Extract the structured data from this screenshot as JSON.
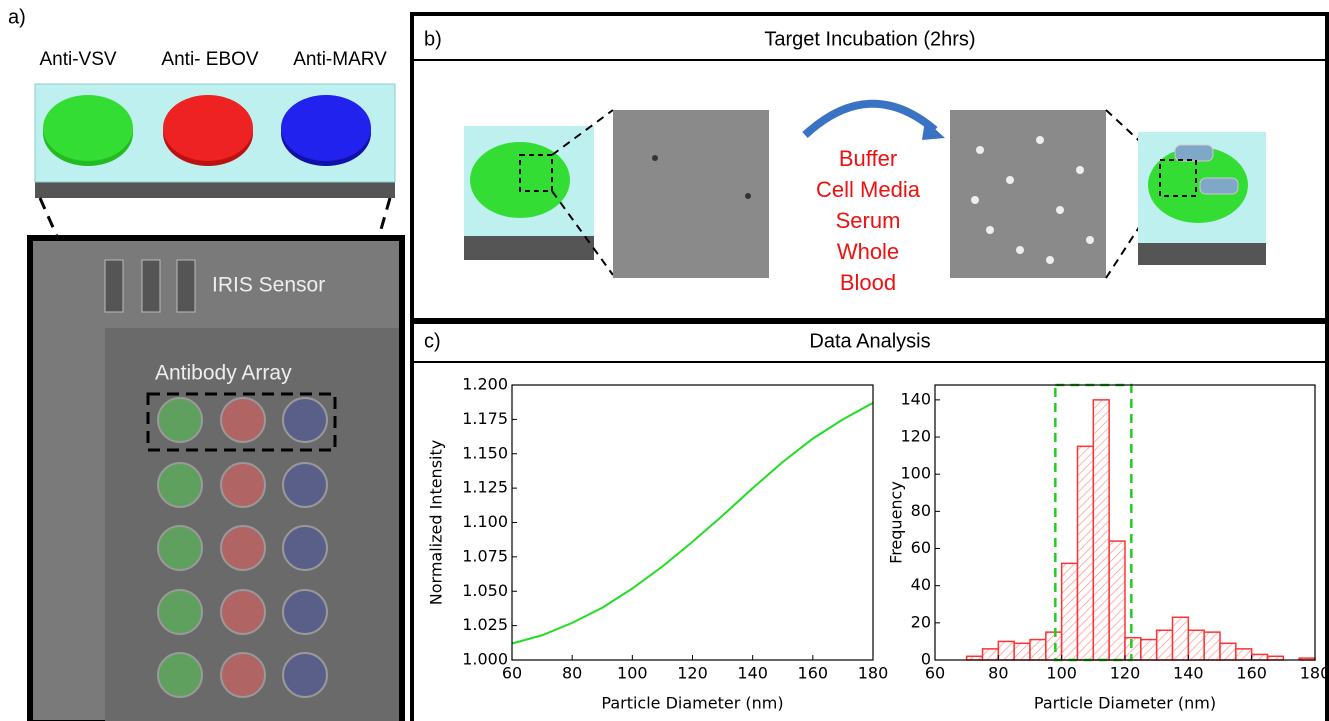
{
  "panel_a": {
    "label": "a)",
    "antibodies": [
      "Anti-VSV",
      "Anti- EBOV",
      "Anti-MARV"
    ],
    "sensor_label": "IRIS Sensor",
    "array_label": "Antibody Array"
  },
  "panel_b": {
    "label": "b)",
    "title": "Target Incubation (2hrs)",
    "media": [
      "Buffer",
      "Cell Media",
      "Serum",
      "Whole",
      "Blood"
    ]
  },
  "panel_c": {
    "label": "c)",
    "title": "Data Analysis"
  },
  "chart_data": [
    {
      "type": "line",
      "x_label": "Particle Diameter (nm)",
      "y_label": "Normalized Intensity",
      "x": [
        60,
        70,
        80,
        90,
        100,
        110,
        120,
        130,
        140,
        150,
        160,
        170,
        180
      ],
      "series": [
        {
          "color": "#22dd22",
          "values": [
            1.012,
            1.018,
            1.027,
            1.038,
            1.052,
            1.068,
            1.086,
            1.105,
            1.125,
            1.144,
            1.161,
            1.175,
            1.187
          ]
        }
      ],
      "xlim": [
        60,
        180
      ],
      "xticks": [
        60,
        80,
        100,
        120,
        140,
        160,
        180
      ],
      "ylim": [
        1,
        1.2
      ],
      "yticks": [
        {
          "value": 1,
          "label": "1.000"
        },
        {
          "value": 1.025,
          "label": "1.025"
        },
        {
          "value": 1.05,
          "label": "1.050"
        },
        {
          "value": 1.075,
          "label": "1.075"
        },
        {
          "value": 1.1,
          "label": "1.100"
        },
        {
          "value": 1.125,
          "label": "1.125"
        },
        {
          "value": 1.15,
          "label": "1.150"
        },
        {
          "value": 1.175,
          "label": "1.175"
        },
        {
          "value": 1.2,
          "label": "1.200"
        }
      ]
    },
    {
      "type": "histogram",
      "x_label": "Particle Diameter (nm)",
      "y_label": "Frequency",
      "color": "#ff3333",
      "bins": [
        70,
        75,
        80,
        85,
        90,
        95,
        100,
        105,
        110,
        115,
        120,
        125,
        130,
        135,
        140,
        145,
        150,
        155,
        160,
        165,
        170,
        175,
        180
      ],
      "values": [
        2,
        6,
        10,
        9,
        11,
        15,
        52,
        115,
        140,
        64,
        12,
        11,
        16,
        23,
        16,
        15,
        9,
        6,
        3,
        2,
        0,
        1
      ],
      "highlight_x": [
        98,
        122
      ],
      "highlight_color": "#22cc22",
      "xlim": [
        60,
        180
      ],
      "xticks": [
        60,
        80,
        100,
        120,
        140,
        160,
        180
      ],
      "ylim": [
        0,
        148
      ],
      "yticks": [
        0,
        20,
        40,
        60,
        80,
        100,
        120,
        140
      ]
    }
  ]
}
